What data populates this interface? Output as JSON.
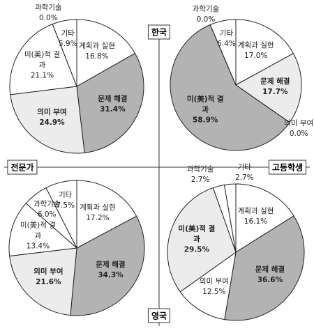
{
  "axis_labels": {
    "top": "한국",
    "bottom": "영국",
    "left": "전문가",
    "right": "고등학생"
  },
  "chart_data": [
    {
      "type": "pie",
      "categories": [
        "계획과 실현",
        "문제 해결",
        "의미 부여",
        "미(美)적 결과",
        "과학기술",
        "기타"
      ],
      "values": [
        16.8,
        31.4,
        24.9,
        21.1,
        0.0,
        5.9
      ],
      "value_labels": [
        "16.8%",
        "31.4%",
        "24.9%",
        "21.1%",
        "0.0%",
        "5.9%"
      ],
      "colors": [
        "#ffffff",
        "#b3b3b3",
        "#ececec",
        "#ffffff",
        "#ffffff",
        "#ffffff"
      ]
    },
    {
      "type": "pie",
      "categories": [
        "계획과 실현",
        "문제 해결",
        "의미 부여",
        "미(美)적 결과",
        "과학기술",
        "기타"
      ],
      "values": [
        17.0,
        17.7,
        0.0,
        58.9,
        0.0,
        6.4
      ],
      "value_labels": [
        "17.0%",
        "17.7%",
        "0.0%",
        "58.9%",
        "0.0%",
        "6.4%"
      ],
      "colors": [
        "#ffffff",
        "#ececec",
        "#ffffff",
        "#b3b3b3",
        "#ffffff",
        "#ffffff"
      ]
    },
    {
      "type": "pie",
      "categories": [
        "계획과 실현",
        "문제 해결",
        "의미 부여",
        "미(美)적 결과",
        "과학기술",
        "기타"
      ],
      "values": [
        17.2,
        34.3,
        21.6,
        13.4,
        6.0,
        7.5
      ],
      "value_labels": [
        "17.2%",
        "34.3%",
        "21.6%",
        "13.4%",
        "6.0%",
        "7.5%"
      ],
      "colors": [
        "#ffffff",
        "#b3b3b3",
        "#ececec",
        "#ffffff",
        "#ffffff",
        "#ffffff"
      ]
    },
    {
      "type": "pie",
      "categories": [
        "계획과 실현",
        "문제 해결",
        "의미 부여",
        "미(美)적 결과",
        "과학기술",
        "기타"
      ],
      "values": [
        16.1,
        36.6,
        12.5,
        29.5,
        2.7,
        2.7
      ],
      "value_labels": [
        "16.1%",
        "36.6%",
        "12.5%",
        "29.5%",
        "2.7%",
        "2.7%"
      ],
      "colors": [
        "#ffffff",
        "#b3b3b3",
        "#ffffff",
        "#ececec",
        "#ffffff",
        "#ffffff"
      ]
    }
  ]
}
